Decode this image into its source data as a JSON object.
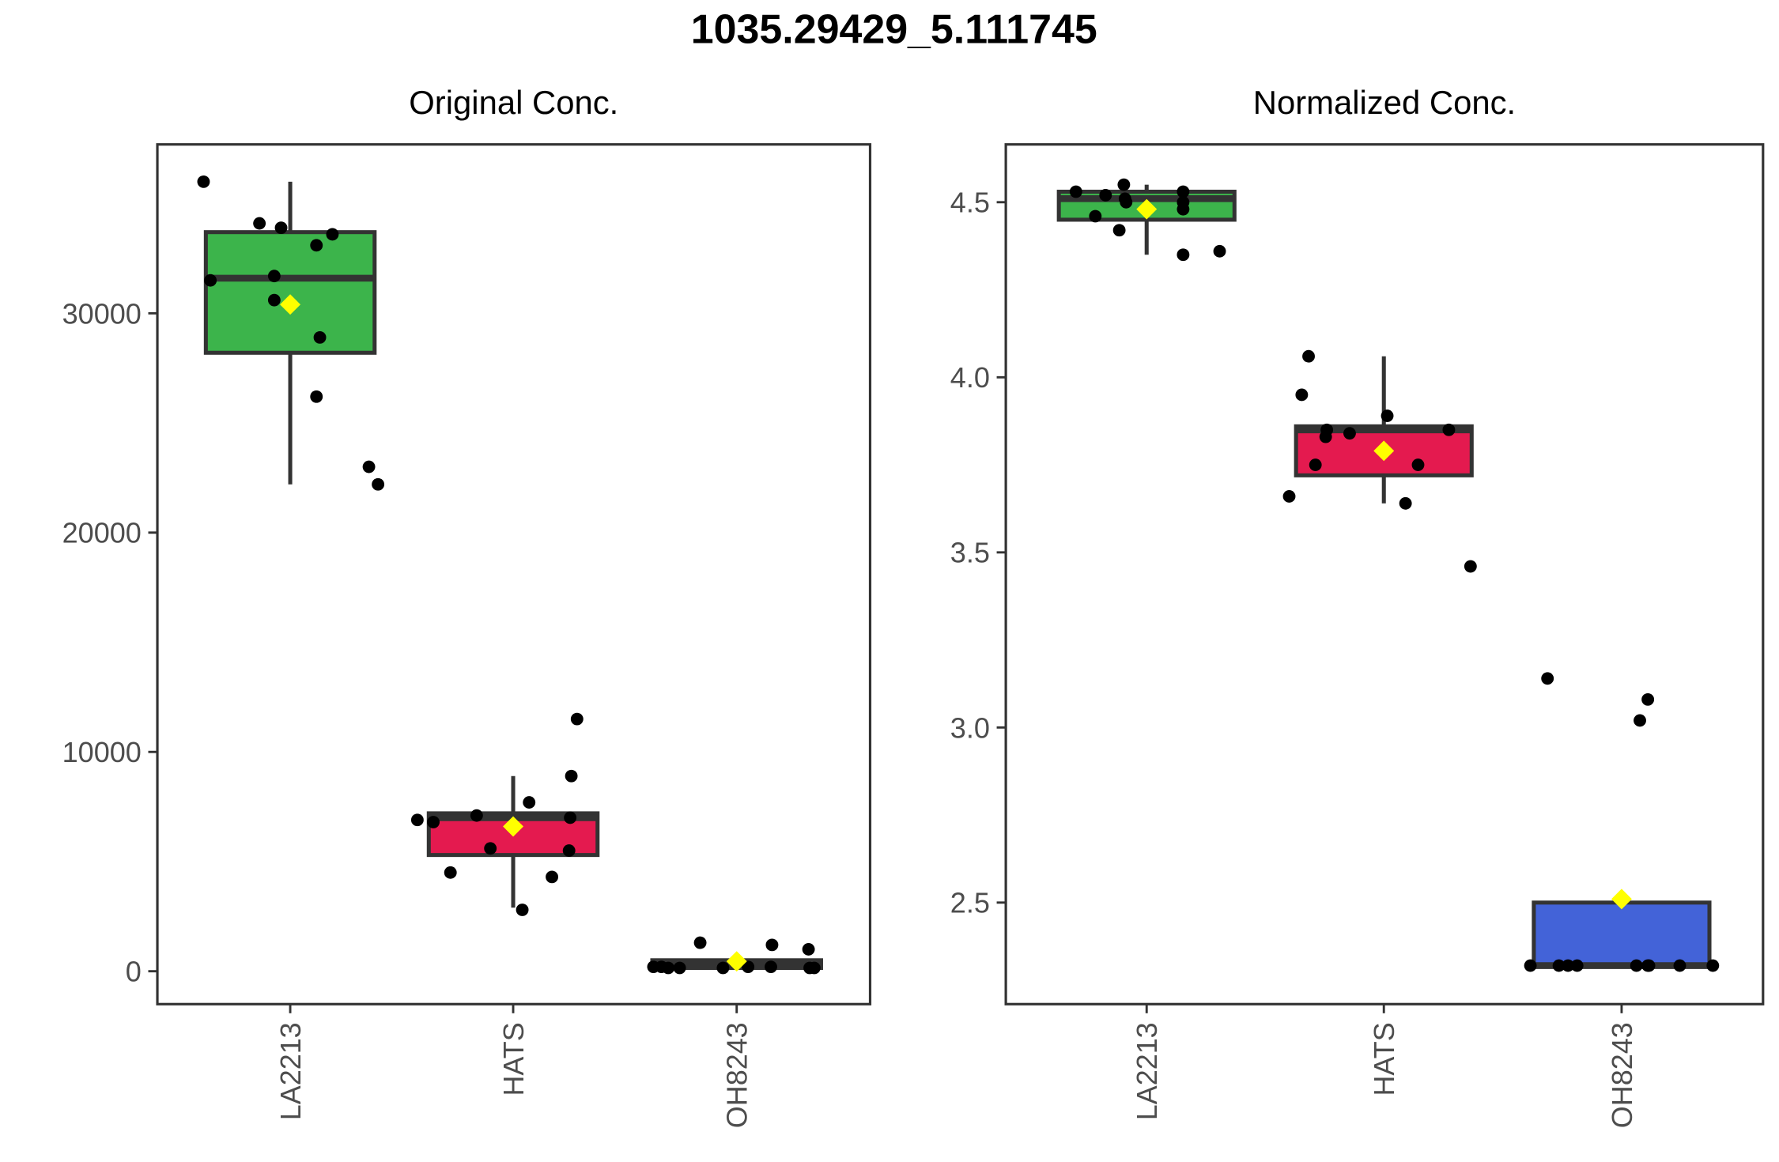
{
  "title": "1035.29429_5.111745",
  "colors": {
    "LA2213": "#3cb44b",
    "HATS": "#e41a4f",
    "OH8243": "#4363d8",
    "mean_marker": "#ffff00",
    "points": "#000000",
    "box_outline": "#333333"
  },
  "chart_data": [
    {
      "type": "box",
      "title": "Original Conc.",
      "categories": [
        "LA2213",
        "HATS",
        "OH8243"
      ],
      "yticks": [
        0,
        10000,
        20000,
        30000
      ],
      "ylim": [
        -1500,
        37700
      ],
      "boxes": [
        {
          "group": "LA2213",
          "q1": 28200,
          "median": 31600,
          "q3": 33700,
          "whisker_low": 22200,
          "whisker_high": 36000,
          "mean": 30400
        },
        {
          "group": "HATS",
          "q1": 5300,
          "median": 7000,
          "q3": 7200,
          "whisker_low": 2900,
          "whisker_high": 8900,
          "mean": 6600
        },
        {
          "group": "OH8243",
          "q1": 150,
          "median": 300,
          "q3": 500,
          "whisker_low": 150,
          "whisker_high": 500,
          "mean": 450
        }
      ],
      "points": [
        {
          "group": "LA2213",
          "values": [
            36000,
            34100,
            33900,
            33600,
            33100,
            31700,
            31500,
            30600,
            28900,
            26200,
            23000,
            22200
          ]
        },
        {
          "group": "HATS",
          "values": [
            11500,
            8900,
            7700,
            7100,
            7000,
            6900,
            6800,
            5600,
            5500,
            4500,
            4300,
            2800
          ]
        },
        {
          "group": "OH8243",
          "values": [
            1300,
            1200,
            1000,
            200,
            200,
            200,
            200,
            150,
            150,
            150,
            150,
            150
          ]
        }
      ]
    },
    {
      "type": "box",
      "title": "Normalized Conc.",
      "categories": [
        "LA2213",
        "HATS",
        "OH8243"
      ],
      "yticks": [
        2.5,
        3.0,
        3.5,
        4.0,
        4.5
      ],
      "ylim": [
        2.21,
        4.665
      ],
      "boxes": [
        {
          "group": "LA2213",
          "q1": 4.45,
          "median": 4.51,
          "q3": 4.53,
          "whisker_low": 4.35,
          "whisker_high": 4.55,
          "mean": 4.48
        },
        {
          "group": "HATS",
          "q1": 3.72,
          "median": 3.85,
          "q3": 3.86,
          "whisker_low": 3.64,
          "whisker_high": 4.06,
          "mean": 3.79
        },
        {
          "group": "OH8243",
          "q1": 2.32,
          "median": 2.32,
          "q3": 2.5,
          "whisker_low": 2.32,
          "whisker_high": 2.5,
          "mean": 2.51
        }
      ],
      "points": [
        {
          "group": "LA2213",
          "values": [
            4.55,
            4.53,
            4.53,
            4.52,
            4.51,
            4.5,
            4.5,
            4.48,
            4.46,
            4.42,
            4.36,
            4.35
          ]
        },
        {
          "group": "HATS",
          "values": [
            4.06,
            3.95,
            3.89,
            3.85,
            3.85,
            3.84,
            3.83,
            3.75,
            3.75,
            3.66,
            3.64,
            3.46
          ]
        },
        {
          "group": "OH8243",
          "values": [
            3.14,
            3.08,
            3.02,
            2.32,
            2.32,
            2.32,
            2.32,
            2.32,
            2.32,
            2.32,
            2.32,
            2.32
          ]
        }
      ]
    }
  ]
}
